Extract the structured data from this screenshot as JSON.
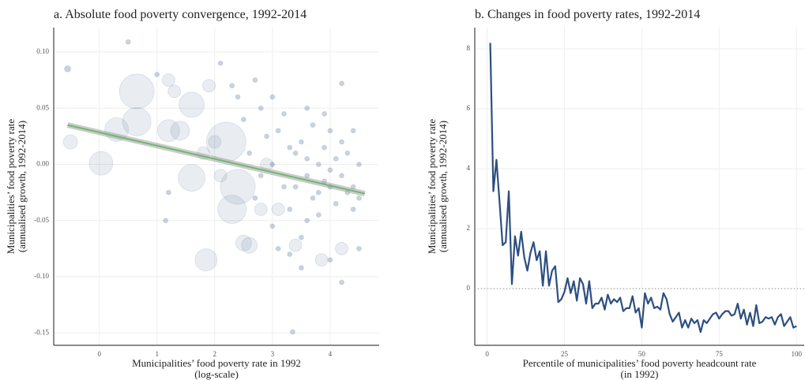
{
  "chart_data": [
    {
      "type": "scatter",
      "title": "a. Absolute food poverty convergence, 1992-2014",
      "xlabel": [
        "Municipalities’ food poverty rate in 1992",
        "(log-scale)"
      ],
      "ylabel": [
        "Municipalities’ food poverty rate",
        "(annualised growth, 1992-2014)"
      ],
      "xlim": [
        -0.79,
        4.85
      ],
      "ylim": [
        -0.161,
        0.1217
      ],
      "xticks": [
        0,
        1,
        2,
        3,
        4
      ],
      "yticks": [
        {
          "value": 0.1,
          "label": "0.10"
        },
        {
          "value": 0.05,
          "label": "0.05"
        },
        {
          "value": 0,
          "label": "0.00"
        },
        {
          "value": -0.05,
          "label": "-0.05"
        },
        {
          "value": -0.1,
          "label": "-0.10"
        },
        {
          "value": -0.15,
          "label": "-0.15"
        }
      ],
      "grid": true,
      "series": [
        {
          "color": "#2c4f80",
          "x": [
            0.65,
            0.65,
            0.3,
            1.6,
            1.6,
            0.03,
            1.85,
            2.3,
            2.5,
            -0.5,
            -0.55,
            2.6,
            2.2,
            2.4,
            1.2,
            1.4,
            2.0,
            1.8,
            2.1,
            2.8,
            3.4,
            3.1,
            2.9,
            4.2,
            3.85,
            1.2,
            1.3,
            1.9,
            2.6,
            2.8,
            3.0,
            3.2,
            3.4,
            3.6,
            3.8,
            4.0,
            4.2,
            4.4,
            4.5,
            3.1,
            3.3,
            3.5,
            3.7,
            3.9,
            4.1,
            4.3,
            2.9,
            2.7,
            3.6,
            3.8,
            4.0,
            4.2,
            4.4,
            3.2,
            3.0,
            2.5,
            2.4,
            3.5,
            3.7,
            3.9,
            4.1,
            4.3,
            4.5,
            3.4,
            3.6,
            3.8,
            4.0,
            3.3,
            2.8,
            2.3,
            2.7,
            3.1,
            3.3,
            4.0,
            3.35,
            4.2,
            0.5,
            1.0,
            2.1,
            4.5,
            3.5,
            4.2,
            1.15,
            1.2,
            3.0,
            3.6,
            3.9,
            4.4
          ],
          "values": [
            0.065,
            0.038,
            0.031,
            0.053,
            -0.012,
            0.001,
            -0.085,
            -0.04,
            -0.07,
            0.02,
            0.085,
            -0.072,
            0.02,
            -0.02,
            0.03,
            0.03,
            0.02,
            0.01,
            -0.01,
            -0.04,
            -0.072,
            -0.04,
            0.0,
            -0.075,
            -0.085,
            0.075,
            0.065,
            0.07,
            0.01,
            -0.01,
            0.0,
            -0.02,
            0.01,
            -0.01,
            0.0,
            -0.02,
            -0.01,
            -0.02,
            0.0,
            0.03,
            -0.04,
            0.02,
            -0.03,
            0.015,
            -0.035,
            0.01,
            0.025,
            -0.03,
            -0.05,
            -0.045,
            0.03,
            0.02,
            -0.04,
            0.045,
            -0.055,
            0.04,
            0.06,
            -0.065,
            0.035,
            -0.015,
            0.005,
            -0.025,
            -0.03,
            -0.02,
            0.005,
            -0.025,
            -0.005,
            0.015,
            0.05,
            0.07,
            0.075,
            -0.075,
            -0.08,
            -0.085,
            -0.149,
            -0.105,
            0.109,
            0.08,
            0.09,
            -0.075,
            -0.092,
            0.072,
            -0.05,
            -0.025,
            0.06,
            0.05,
            0.045,
            0.03
          ],
          "sizes": [
            22,
            18,
            15,
            16,
            17,
            15,
            14,
            18,
            10,
            9,
            4,
            10,
            25,
            22,
            14,
            12,
            8,
            8,
            8,
            8,
            8,
            8,
            8,
            8,
            8,
            8,
            8,
            8,
            3,
            3,
            3,
            3,
            3,
            3,
            3,
            3,
            3,
            3,
            3,
            3,
            3,
            3,
            3,
            3,
            3,
            3,
            3,
            3,
            3,
            3,
            3,
            3,
            3,
            3,
            3,
            3,
            3,
            3,
            3,
            3,
            3,
            3,
            3,
            3,
            3,
            3,
            3,
            3,
            3,
            3,
            3,
            3,
            3,
            3,
            3,
            3,
            3,
            3,
            3,
            3,
            3,
            3,
            3,
            3,
            3,
            3,
            3,
            3
          ]
        }
      ],
      "fit": {
        "color": "#6fb86f",
        "x": [
          -0.55,
          4.6
        ],
        "values": [
          0.035,
          -0.026
        ]
      }
    },
    {
      "type": "line",
      "title": "b. Changes in food poverty rates, 1992-2014",
      "xlabel": [
        "Percentile of municipalities’ food poverty headcount rate",
        "(in 1992)"
      ],
      "ylabel": [
        "Municipalities’ food poverty rate",
        "(annualised growth, 1992-2014)"
      ],
      "xlim": [
        -4,
        102.5
      ],
      "ylim": [
        -1.89,
        8.71
      ],
      "xticks": [
        0,
        25,
        50,
        75,
        100
      ],
      "yticks": [
        0,
        2,
        4,
        6,
        8
      ],
      "grid": true,
      "hline": 0,
      "color": "#2c4f80",
      "x": [
        1,
        2,
        3,
        4,
        5,
        6,
        7,
        8,
        9,
        10,
        11,
        12,
        13,
        14,
        15,
        16,
        17,
        18,
        19,
        20,
        21,
        22,
        23,
        24,
        25,
        26,
        27,
        28,
        29,
        30,
        31,
        32,
        33,
        34,
        35,
        36,
        37,
        38,
        39,
        40,
        41,
        42,
        43,
        44,
        45,
        46,
        47,
        48,
        49,
        50,
        51,
        52,
        53,
        54,
        55,
        56,
        57,
        58,
        59,
        60,
        61,
        62,
        63,
        64,
        65,
        66,
        67,
        68,
        69,
        70,
        71,
        72,
        73,
        74,
        75,
        76,
        77,
        78,
        79,
        80,
        81,
        82,
        83,
        84,
        85,
        86,
        87,
        88,
        89,
        90,
        91,
        92,
        93,
        94,
        95,
        96,
        97,
        98,
        99,
        100
      ],
      "values": [
        8.2,
        3.25,
        4.3,
        2.9,
        1.45,
        1.55,
        3.25,
        0.15,
        1.75,
        1.1,
        1.9,
        1.05,
        0.6,
        1.2,
        1.55,
        0.95,
        1.25,
        0.1,
        1.25,
        0.1,
        0.6,
        0.75,
        -0.45,
        -0.35,
        -0.1,
        0.35,
        -0.15,
        0.25,
        -0.4,
        0.35,
        0.15,
        -0.5,
        0.25,
        -0.65,
        -0.5,
        -0.5,
        -0.3,
        -0.7,
        -0.2,
        -0.5,
        -0.35,
        -0.45,
        -0.3,
        -0.75,
        -0.65,
        -0.65,
        -0.25,
        -0.8,
        -0.65,
        -1.3,
        -0.15,
        -0.5,
        -0.3,
        -0.65,
        -0.6,
        -0.7,
        -0.15,
        -0.35,
        -0.85,
        -1.1,
        -0.95,
        -0.8,
        -1.3,
        -1.05,
        -1.3,
        -1.0,
        -1.15,
        -1.05,
        -1.45,
        -1.05,
        -1.15,
        -1.0,
        -0.85,
        -0.8,
        -1.0,
        -0.85,
        -0.75,
        -0.75,
        -0.9,
        -0.85,
        -0.5,
        -1.0,
        -0.7,
        -1.2,
        -0.8,
        -1.25,
        -0.55,
        -1.15,
        -1.1,
        -0.95,
        -1.0,
        -0.95,
        -1.2,
        -0.95,
        -0.85,
        -1.25,
        -1.1,
        -0.95,
        -1.3,
        -1.25
      ]
    }
  ]
}
